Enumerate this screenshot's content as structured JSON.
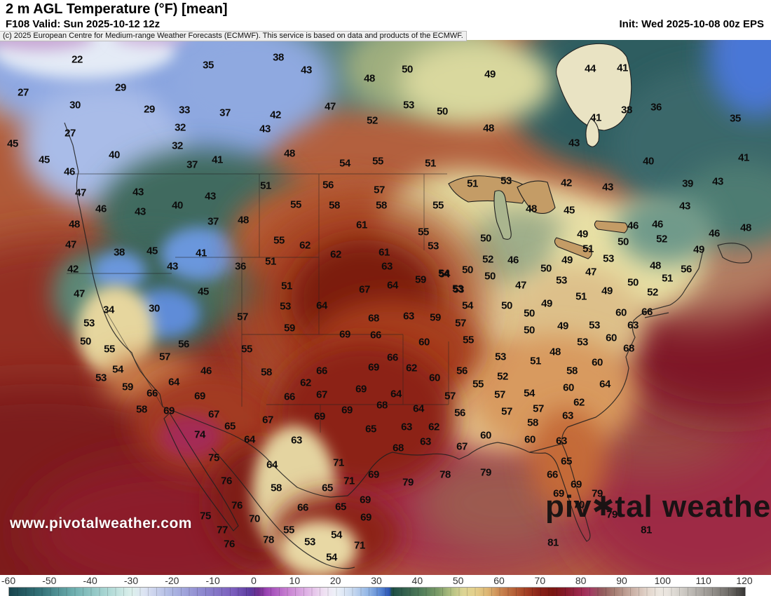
{
  "header": {
    "title": "2 m AGL Temperature (°F) [mean]",
    "valid": "F108 Valid: Sun 2025-10-12 12z",
    "init": "Init: Wed 2025-10-08 00z EPS"
  },
  "copyright_bar": "(c) 2025 European Centre for Medium-range Weather Forecasts (ECMWF). This service is based on data and products of the ECMWF.",
  "watermark": {
    "url_text": "www.pivotalweather.com"
  },
  "brand": {
    "left": "piv",
    "right": "tal weather",
    "gear_glyph": "✱"
  },
  "colorbar": {
    "unit": "°F",
    "tick_labels": [
      "-60",
      "-50",
      "-40",
      "-30",
      "-20",
      "-10",
      "0",
      "10",
      "20",
      "30",
      "40",
      "50",
      "60",
      "70",
      "80",
      "90",
      "100",
      "110",
      "120"
    ],
    "stops": [
      {
        "t": -60,
        "c": "#17454e"
      },
      {
        "t": -52,
        "c": "#35747a"
      },
      {
        "t": -44,
        "c": "#6fb0b0"
      },
      {
        "t": -36,
        "c": "#abd7d4"
      },
      {
        "t": -30,
        "c": "#dcf0ec"
      },
      {
        "t": -27,
        "c": "#dde4f3"
      },
      {
        "t": -20,
        "c": "#abb5e2"
      },
      {
        "t": -12,
        "c": "#8b84cd"
      },
      {
        "t": -5,
        "c": "#7a5cbc"
      },
      {
        "t": -1,
        "c": "#5c3a9e"
      },
      {
        "t": 1,
        "c": "#6f2e8e"
      },
      {
        "t": 3,
        "c": "#9b44b4"
      },
      {
        "t": 8,
        "c": "#c77fd1"
      },
      {
        "t": 13,
        "c": "#e0b5e6"
      },
      {
        "t": 17,
        "c": "#efe0f2"
      },
      {
        "t": 20,
        "c": "#eef2f9"
      },
      {
        "t": 24,
        "c": "#c8d9f0"
      },
      {
        "t": 28,
        "c": "#8fb3e4"
      },
      {
        "t": 31,
        "c": "#5381d0"
      },
      {
        "t": 33,
        "c": "#2b55b4"
      },
      {
        "t": 33.6,
        "c": "#1d4f46"
      },
      {
        "t": 37,
        "c": "#35624e"
      },
      {
        "t": 41,
        "c": "#527e5a"
      },
      {
        "t": 45,
        "c": "#7c9c68"
      },
      {
        "t": 48,
        "c": "#b0bf80"
      },
      {
        "t": 51,
        "c": "#dcd494"
      },
      {
        "t": 54,
        "c": "#e4cf8b"
      },
      {
        "t": 57,
        "c": "#ddb673"
      },
      {
        "t": 60,
        "c": "#cb8852"
      },
      {
        "t": 64,
        "c": "#b25a33"
      },
      {
        "t": 67,
        "c": "#a03a22"
      },
      {
        "t": 70,
        "c": "#872017"
      },
      {
        "t": 73,
        "c": "#7a1712"
      },
      {
        "t": 76,
        "c": "#85192a"
      },
      {
        "t": 80,
        "c": "#a02a50"
      },
      {
        "t": 82,
        "c": "#a43a62"
      },
      {
        "t": 85,
        "c": "#935a5c"
      },
      {
        "t": 88,
        "c": "#a67d72"
      },
      {
        "t": 92,
        "c": "#c7aba0"
      },
      {
        "t": 96,
        "c": "#e2d4ca"
      },
      {
        "t": 99,
        "c": "#ece6df"
      },
      {
        "t": 101,
        "c": "#e9e4de"
      },
      {
        "t": 104,
        "c": "#d5d1cb"
      },
      {
        "t": 108,
        "c": "#b4b0ab"
      },
      {
        "t": 112,
        "c": "#94908b"
      },
      {
        "t": 116,
        "c": "#6e6b67"
      },
      {
        "t": 120,
        "c": "#393735"
      }
    ]
  },
  "map": {
    "temperature_labels": [
      [
        22,
        110,
        85
      ],
      [
        27,
        33,
        132
      ],
      [
        29,
        172,
        125
      ],
      [
        30,
        107,
        150
      ],
      [
        27,
        100,
        190
      ],
      [
        35,
        297,
        93
      ],
      [
        29,
        213,
        156
      ],
      [
        33,
        263,
        157
      ],
      [
        37,
        321,
        161
      ],
      [
        32,
        257,
        182
      ],
      [
        32,
        253,
        208
      ],
      [
        37,
        274,
        235
      ],
      [
        41,
        310,
        228
      ],
      [
        45,
        18,
        205
      ],
      [
        45,
        63,
        228
      ],
      [
        46,
        99,
        245
      ],
      [
        40,
        163,
        221
      ],
      [
        47,
        115,
        275
      ],
      [
        43,
        197,
        274
      ],
      [
        40,
        253,
        293
      ],
      [
        43,
        300,
        280
      ],
      [
        46,
        144,
        298
      ],
      [
        43,
        200,
        302
      ],
      [
        38,
        397,
        82
      ],
      [
        43,
        437,
        100
      ],
      [
        48,
        527,
        112
      ],
      [
        50,
        581,
        99
      ],
      [
        49,
        699,
        106
      ],
      [
        47,
        471,
        152
      ],
      [
        42,
        393,
        164
      ],
      [
        43,
        378,
        184
      ],
      [
        52,
        531,
        172
      ],
      [
        53,
        583,
        150
      ],
      [
        50,
        631,
        159
      ],
      [
        48,
        697,
        183
      ],
      [
        48,
        413,
        219
      ],
      [
        54,
        492,
        233
      ],
      [
        55,
        539,
        230
      ],
      [
        51,
        614,
        233
      ],
      [
        51,
        379,
        265
      ],
      [
        55,
        422,
        292
      ],
      [
        56,
        468,
        264
      ],
      [
        57,
        541,
        271
      ],
      [
        58,
        477,
        293
      ],
      [
        58,
        544,
        293
      ],
      [
        51,
        674,
        262
      ],
      [
        53,
        722,
        258
      ],
      [
        55,
        625,
        293
      ],
      [
        44,
        842,
        98
      ],
      [
        41,
        888,
        97
      ],
      [
        38,
        894,
        157
      ],
      [
        36,
        936,
        153
      ],
      [
        35,
        1049,
        169
      ],
      [
        41,
        850,
        168
      ],
      [
        43,
        819,
        204
      ],
      [
        40,
        925,
        230
      ],
      [
        41,
        1061,
        225
      ],
      [
        42,
        808,
        261
      ],
      [
        43,
        867,
        267
      ],
      [
        39,
        981,
        262
      ],
      [
        43,
        1024,
        259
      ],
      [
        45,
        812,
        300
      ],
      [
        43,
        977,
        294
      ],
      [
        48,
        758,
        298
      ],
      [
        48,
        106,
        320
      ],
      [
        47,
        101,
        349
      ],
      [
        38,
        170,
        360
      ],
      [
        45,
        217,
        358
      ],
      [
        43,
        246,
        380
      ],
      [
        41,
        287,
        361
      ],
      [
        37,
        304,
        316
      ],
      [
        48,
        347,
        314
      ],
      [
        36,
        343,
        380
      ],
      [
        42,
        104,
        384
      ],
      [
        47,
        113,
        419
      ],
      [
        34,
        155,
        442
      ],
      [
        30,
        220,
        440
      ],
      [
        45,
        290,
        416
      ],
      [
        57,
        346,
        452
      ],
      [
        53,
        127,
        461
      ],
      [
        50,
        122,
        487
      ],
      [
        55,
        156,
        498
      ],
      [
        54,
        168,
        527
      ],
      [
        53,
        144,
        539
      ],
      [
        59,
        182,
        552
      ],
      [
        57,
        235,
        509
      ],
      [
        56,
        262,
        491
      ],
      [
        46,
        294,
        529
      ],
      [
        64,
        248,
        545
      ],
      [
        55,
        352,
        498
      ],
      [
        61,
        516,
        321
      ],
      [
        55,
        398,
        343
      ],
      [
        62,
        435,
        350
      ],
      [
        62,
        479,
        363
      ],
      [
        61,
        548,
        360
      ],
      [
        55,
        604,
        331
      ],
      [
        53,
        618,
        351
      ],
      [
        63,
        552,
        380
      ],
      [
        50,
        693,
        340
      ],
      [
        52,
        696,
        370
      ],
      [
        46,
        732,
        371
      ],
      [
        50,
        667,
        385
      ],
      [
        50,
        699,
        394
      ],
      [
        54,
        633,
        390
      ],
      [
        59,
        600,
        399
      ],
      [
        64,
        560,
        407
      ],
      [
        51,
        386,
        373
      ],
      [
        51,
        409,
        408
      ],
      [
        67,
        520,
        413
      ],
      [
        53,
        654,
        413
      ],
      [
        53,
        407,
        437
      ],
      [
        64,
        459,
        436
      ],
      [
        68,
        533,
        454
      ],
      [
        63,
        583,
        451
      ],
      [
        59,
        621,
        453
      ],
      [
        54,
        667,
        436
      ],
      [
        50,
        723,
        436
      ],
      [
        59,
        413,
        468
      ],
      [
        69,
        492,
        477
      ],
      [
        66,
        536,
        478
      ],
      [
        57,
        657,
        461
      ],
      [
        55,
        668,
        485
      ],
      [
        60,
        605,
        488
      ],
      [
        66,
        560,
        510
      ],
      [
        69,
        533,
        524
      ],
      [
        62,
        587,
        525
      ],
      [
        53,
        714,
        509
      ],
      [
        66,
        459,
        529
      ],
      [
        62,
        436,
        546
      ],
      [
        58,
        380,
        531
      ],
      [
        60,
        620,
        539
      ],
      [
        56,
        659,
        529
      ],
      [
        52,
        717,
        537
      ],
      [
        55,
        682,
        548
      ],
      [
        47,
        743,
        407
      ],
      [
        54,
        634,
        391
      ],
      [
        53,
        653,
        412
      ],
      [
        46,
        903,
        322
      ],
      [
        46,
        938,
        320
      ],
      [
        52,
        944,
        341
      ],
      [
        46,
        1019,
        333
      ],
      [
        48,
        1064,
        325
      ],
      [
        49,
        997,
        356
      ],
      [
        50,
        889,
        345
      ],
      [
        51,
        839,
        355
      ],
      [
        53,
        868,
        369
      ],
      [
        49,
        831,
        334
      ],
      [
        49,
        809,
        371
      ],
      [
        50,
        779,
        383
      ],
      [
        53,
        801,
        400
      ],
      [
        48,
        935,
        379
      ],
      [
        56,
        979,
        384
      ],
      [
        51,
        952,
        397
      ],
      [
        47,
        843,
        388
      ],
      [
        50,
        903,
        403
      ],
      [
        52,
        931,
        417
      ],
      [
        49,
        866,
        415
      ],
      [
        51,
        829,
        423
      ],
      [
        49,
        780,
        433
      ],
      [
        50,
        755,
        447
      ],
      [
        50,
        755,
        471
      ],
      [
        49,
        803,
        465
      ],
      [
        60,
        886,
        446
      ],
      [
        66,
        923,
        445
      ],
      [
        63,
        903,
        464
      ],
      [
        53,
        848,
        464
      ],
      [
        60,
        872,
        482
      ],
      [
        53,
        831,
        488
      ],
      [
        68,
        897,
        497
      ],
      [
        48,
        792,
        502
      ],
      [
        51,
        764,
        515
      ],
      [
        60,
        852,
        517
      ],
      [
        58,
        816,
        529
      ],
      [
        60,
        811,
        553
      ],
      [
        64,
        863,
        548
      ],
      [
        66,
        217,
        561
      ],
      [
        69,
        285,
        565
      ],
      [
        58,
        202,
        584
      ],
      [
        69,
        241,
        586
      ],
      [
        67,
        305,
        591
      ],
      [
        65,
        328,
        608
      ],
      [
        74,
        285,
        620
      ],
      [
        64,
        356,
        627
      ],
      [
        75,
        305,
        653
      ],
      [
        76,
        323,
        686
      ],
      [
        76,
        338,
        721
      ],
      [
        75,
        293,
        736
      ],
      [
        77,
        317,
        756
      ],
      [
        76,
        327,
        776
      ],
      [
        70,
        363,
        740
      ],
      [
        66,
        413,
        566
      ],
      [
        67,
        459,
        563
      ],
      [
        69,
        515,
        555
      ],
      [
        69,
        495,
        585
      ],
      [
        69,
        456,
        594
      ],
      [
        64,
        565,
        562
      ],
      [
        68,
        545,
        578
      ],
      [
        64,
        597,
        583
      ],
      [
        57,
        642,
        565
      ],
      [
        57,
        713,
        563
      ],
      [
        57,
        723,
        587
      ],
      [
        56,
        656,
        589
      ],
      [
        63,
        580,
        609
      ],
      [
        65,
        529,
        612
      ],
      [
        63,
        423,
        628
      ],
      [
        62,
        619,
        609
      ],
      [
        67,
        382,
        599
      ],
      [
        60,
        693,
        621
      ],
      [
        63,
        607,
        630
      ],
      [
        68,
        568,
        639
      ],
      [
        67,
        659,
        637
      ],
      [
        64,
        388,
        663
      ],
      [
        71,
        483,
        660
      ],
      [
        69,
        533,
        677
      ],
      [
        79,
        582,
        688
      ],
      [
        78,
        635,
        677
      ],
      [
        79,
        693,
        674
      ],
      [
        58,
        394,
        696
      ],
      [
        71,
        498,
        686
      ],
      [
        65,
        467,
        696
      ],
      [
        66,
        432,
        724
      ],
      [
        65,
        486,
        723
      ],
      [
        69,
        521,
        713
      ],
      [
        69,
        522,
        738
      ],
      [
        55,
        412,
        756
      ],
      [
        53,
        442,
        773
      ],
      [
        54,
        480,
        763
      ],
      [
        54,
        473,
        795
      ],
      [
        71,
        513,
        778
      ],
      [
        78,
        383,
        770
      ],
      [
        54,
        755,
        561
      ],
      [
        57,
        768,
        583
      ],
      [
        58,
        760,
        603
      ],
      [
        60,
        756,
        627
      ],
      [
        62,
        826,
        574
      ],
      [
        63,
        810,
        593
      ],
      [
        63,
        801,
        629
      ],
      [
        65,
        808,
        658
      ],
      [
        66,
        788,
        677
      ],
      [
        69,
        822,
        691
      ],
      [
        69,
        797,
        704
      ],
      [
        70,
        826,
        720
      ],
      [
        79,
        852,
        704
      ],
      [
        79,
        873,
        734
      ],
      [
        81,
        922,
        756
      ],
      [
        81,
        789,
        774
      ]
    ]
  }
}
